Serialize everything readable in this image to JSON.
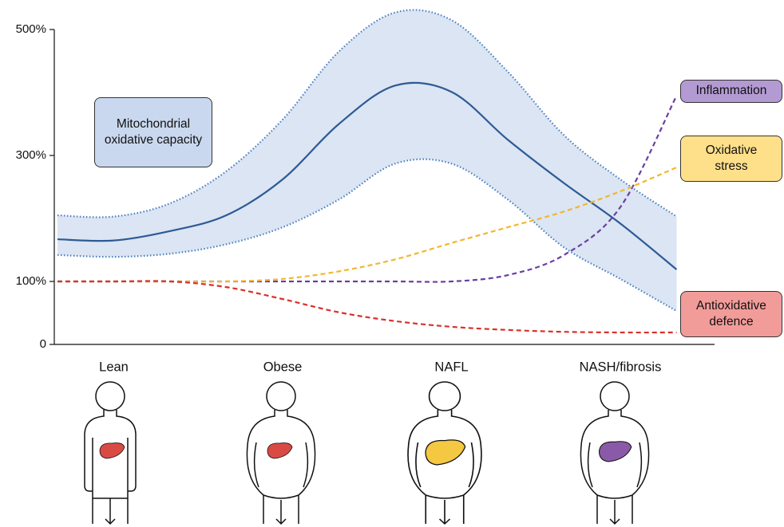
{
  "chart_data": {
    "type": "line",
    "categories": [
      null,
      "Lean",
      null,
      null,
      "Obese",
      null,
      null,
      "NAFL",
      null,
      null,
      "NASH/fibrosis",
      null
    ],
    "ylim": [
      0,
      500
    ],
    "yticks": [
      0,
      {
        "value": 100,
        "label": "100%"
      },
      {
        "value": 300,
        "label": "300%"
      },
      {
        "value": 500,
        "label": "500%"
      }
    ],
    "series": [
      {
        "name": "Mitochondrial oxidative capacity",
        "color": "#2e5a95",
        "band_color": "#dbe5f3",
        "values": [
          167,
          165,
          180,
          205,
          262,
          350,
          411,
          401,
          325,
          256,
          192,
          119
        ],
        "upper": [
          205,
          203,
          224,
          275,
          357,
          465,
          527,
          515,
          433,
          332,
          262,
          203
        ],
        "lower": [
          142,
          139,
          144,
          159,
          186,
          230,
          287,
          287,
          230,
          154,
          104,
          53
        ]
      },
      {
        "name": "Inflammation",
        "color": "#6b3fa0",
        "label_color": "#b39ad3",
        "values": [
          100,
          100,
          100,
          100,
          100,
          100,
          100,
          100,
          110,
          142,
          218,
          395
        ]
      },
      {
        "name": "Oxidative stress",
        "color": "#f3b72c",
        "label_color": "#ffe08a",
        "values": [
          100,
          100,
          100,
          100,
          104,
          116,
          135,
          161,
          186,
          211,
          243,
          281
        ]
      },
      {
        "name": "Antioxidative defence",
        "color": "#d9312b",
        "label_color": "#f29c9a",
        "values": [
          100,
          100,
          100,
          91,
          72,
          51,
          37,
          28,
          23,
          20,
          19,
          19
        ]
      }
    ]
  }
}
